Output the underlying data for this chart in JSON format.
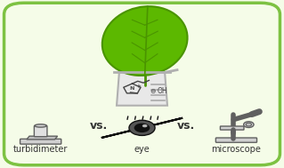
{
  "background_color": "#e8f5d0",
  "border_color": "#7dc242",
  "bg_gradient_center": "#f5fce8",
  "bg_gradient_edge": "#c8e89a",
  "leaf_color": "#5cb800",
  "leaf_stem_color": "#4a9400",
  "leaf_vein_color": "#4a9400",
  "beaker_color": "#b0b0b0",
  "beaker_fill": "#e8e8e8",
  "instrument_fill": "#d0d0d0",
  "instrument_outline": "#606060",
  "eye_black": "#111111",
  "eye_white": "#f5f5f5",
  "vs_text": "vs.",
  "vs_fontsize": 9,
  "vs_color": "#333333",
  "label_turbidimeter": "turbidimeter",
  "label_eye": "eye",
  "label_microscope": "microscope",
  "label_fontsize": 7,
  "label_color": "#333333",
  "figsize": [
    3.19,
    1.89
  ],
  "dpi": 100
}
